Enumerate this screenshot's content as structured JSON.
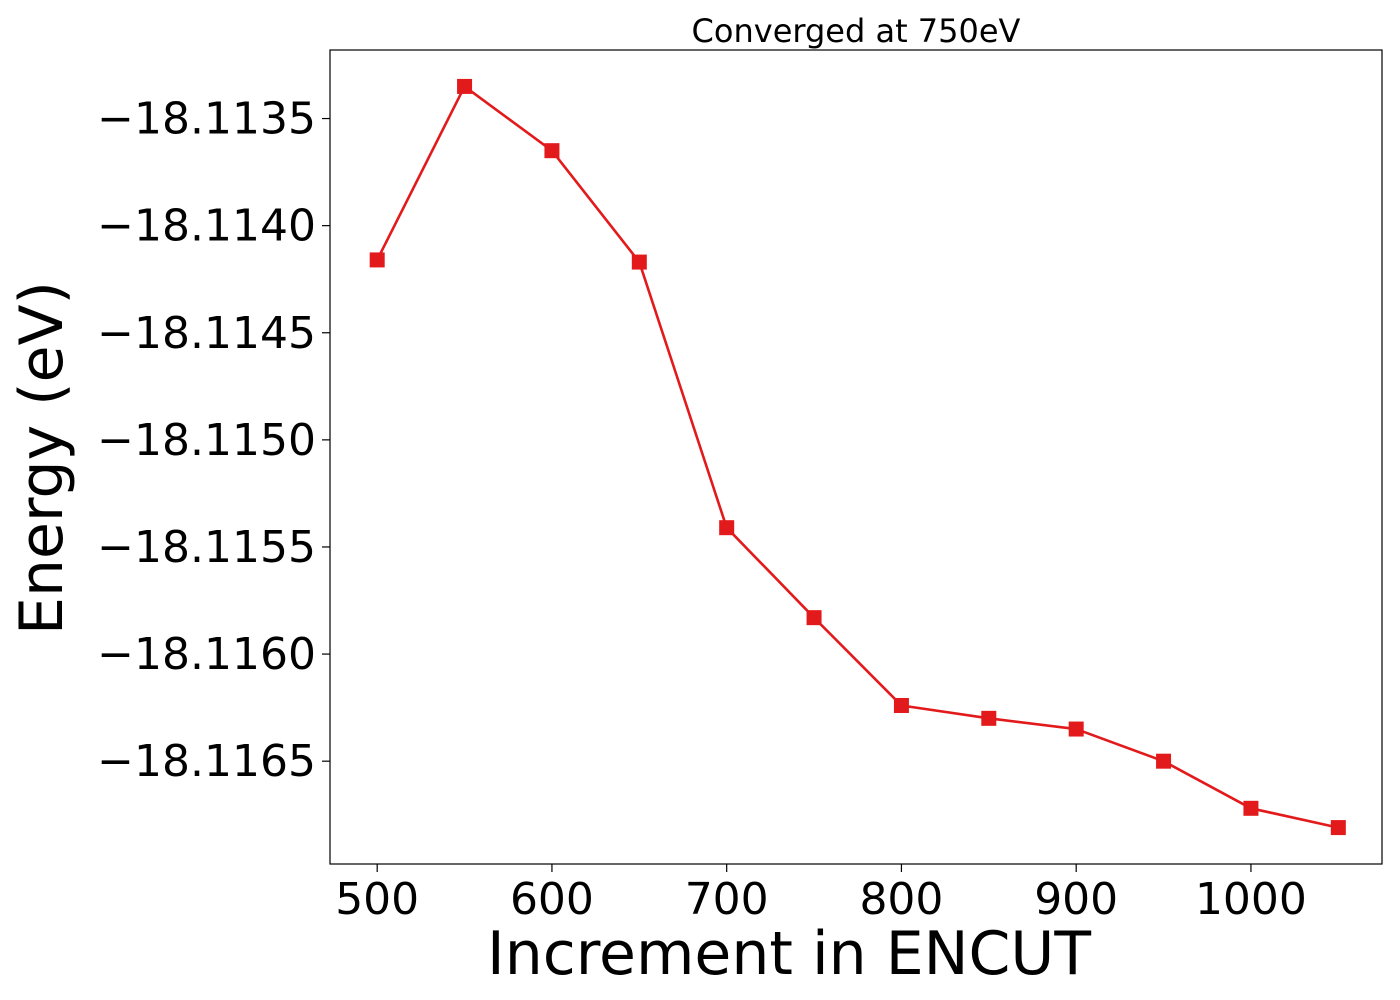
{
  "chart_data": {
    "type": "line",
    "title": "Converged at 750eV",
    "xlabel": "Increment in ENCUT",
    "ylabel": "Energy (eV)",
    "x": [
      500,
      550,
      600,
      650,
      700,
      750,
      800,
      850,
      900,
      950,
      1000,
      1050
    ],
    "series": [
      {
        "values": [
          -18.11416,
          -18.11335,
          -18.11365,
          -18.11417,
          -18.11541,
          -18.11583,
          -18.11624,
          -18.1163,
          -18.11635,
          -18.1165,
          -18.11672,
          -18.11681
        ]
      }
    ],
    "xlim": [
      473,
      1075
    ],
    "ylim": [
      -18.11698,
      -18.11318
    ],
    "xticks": [
      500,
      600,
      700,
      800,
      900,
      1000
    ],
    "xtick_labels": [
      "500",
      "600",
      "700",
      "800",
      "900",
      "1000"
    ],
    "yticks": [
      -18.1135,
      -18.114,
      -18.1145,
      -18.115,
      -18.1155,
      -18.116,
      -18.1165
    ],
    "ytick_labels": [
      "−18.1135",
      "−18.1140",
      "−18.1145",
      "−18.1150",
      "−18.1155",
      "−18.1160",
      "−18.1165"
    ],
    "grid": false,
    "colors": {
      "line": "#e31a1c"
    },
    "marker": "square"
  }
}
